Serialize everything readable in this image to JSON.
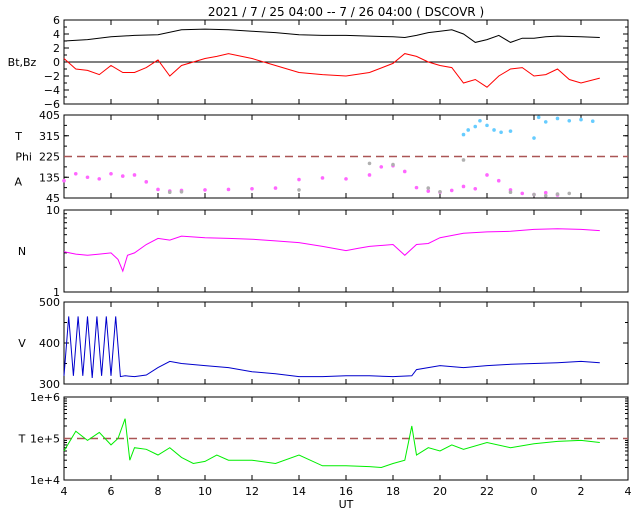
{
  "chart_title": "2021 /  7 / 25   04:00  --  7 / 26   04:00 ( DSCOVR )",
  "x_axis_label": "UT",
  "x_tick_labels": [
    "4",
    "6",
    "8",
    "10",
    "12",
    "14",
    "16",
    "18",
    "20",
    "22",
    "0",
    "2",
    "4"
  ],
  "colors": {
    "bt": "#000000",
    "bz": "#ff0000",
    "phi": "#66ccff",
    "theta": "#ff66ff",
    "theta_alt": "#b0b0b0",
    "density": "#ff00ff",
    "velocity": "#0000cc",
    "temperature": "#00ee00",
    "reference": "#aa5555"
  },
  "chart_data": [
    {
      "type": "line",
      "ylabel": "Bt,Bz",
      "ylim": [
        -6,
        6
      ],
      "y_tick_labels": [
        "6",
        "4",
        "2",
        "0",
        "−2",
        "−4",
        "−6"
      ],
      "zero_line": 0,
      "series": [
        {
          "key": "bt",
          "x": [
            4,
            5,
            6,
            7,
            8,
            9,
            10,
            11,
            12,
            13,
            14,
            15,
            16,
            17,
            18,
            18.5,
            19,
            19.5,
            20,
            20.5,
            21,
            21.5,
            22,
            22.5,
            23,
            23.5,
            24,
            24.5,
            25,
            26,
            26.8
          ],
          "values": [
            3.0,
            3.2,
            3.6,
            3.8,
            3.9,
            4.6,
            4.7,
            4.6,
            4.4,
            4.2,
            3.9,
            3.8,
            3.8,
            3.7,
            3.6,
            3.5,
            3.8,
            4.2,
            4.4,
            4.6,
            4.0,
            2.8,
            3.2,
            3.8,
            2.8,
            3.4,
            3.4,
            3.6,
            3.7,
            3.6,
            3.5
          ]
        },
        {
          "key": "bz",
          "x": [
            4,
            4.5,
            5,
            5.5,
            6,
            6.5,
            7,
            7.5,
            8,
            8.5,
            9,
            9.5,
            10,
            10.5,
            11,
            12,
            13,
            14,
            15,
            16,
            17,
            18,
            18.5,
            19,
            19.5,
            20,
            20.5,
            21,
            21.5,
            22,
            22.5,
            23,
            23.5,
            24,
            24.5,
            25,
            25.5,
            26,
            26.8
          ],
          "values": [
            0.5,
            -1.0,
            -1.2,
            -1.8,
            -0.5,
            -1.5,
            -1.5,
            -0.8,
            0.3,
            -2.0,
            -0.5,
            0.0,
            0.5,
            0.8,
            1.2,
            0.5,
            -0.5,
            -1.5,
            -1.8,
            -2.0,
            -1.5,
            -0.2,
            1.2,
            0.8,
            0.0,
            -0.5,
            -0.8,
            -3.0,
            -2.5,
            -3.6,
            -2.0,
            -1.0,
            -0.8,
            -2.0,
            -1.8,
            -1.0,
            -2.5,
            -3.0,
            -2.3
          ]
        }
      ]
    },
    {
      "type": "scatter",
      "ylabel_top": "T",
      "ylabel_mid": "Phi",
      "ylabel_bottom": "A",
      "ylim": [
        45,
        405
      ],
      "y_tick_labels": [
        "405",
        "315",
        "225",
        "135",
        "45"
      ],
      "reference_line": 225,
      "series": [
        {
          "key": "phi",
          "x": [
            21,
            21.2,
            21.5,
            21.7,
            22,
            22.3,
            22.6,
            23,
            24,
            24.2,
            24.5,
            25,
            25.5,
            26,
            26.5
          ],
          "values": [
            320,
            340,
            355,
            380,
            360,
            340,
            330,
            335,
            305,
            395,
            375,
            390,
            380,
            385,
            378
          ]
        },
        {
          "key": "theta",
          "x": [
            4,
            4.5,
            5,
            5.5,
            6,
            6.5,
            7,
            7.5,
            8,
            8.5,
            9,
            10,
            11,
            12,
            13,
            14,
            15,
            16,
            17,
            17.5,
            18,
            18.5,
            19,
            19.5,
            20,
            20.5,
            21,
            21.5,
            22,
            22.5,
            23,
            23.5,
            24,
            24.5,
            25
          ],
          "values": [
            120,
            150,
            135,
            128,
            150,
            140,
            145,
            115,
            82,
            75,
            78,
            80,
            82,
            85,
            88,
            125,
            132,
            128,
            145,
            180,
            185,
            160,
            90,
            75,
            70,
            78,
            95,
            85,
            145,
            120,
            80,
            65,
            60,
            68,
            58
          ]
        },
        {
          "key": "theta_alt",
          "x": [
            8.5,
            9,
            14,
            17,
            18,
            19.5,
            20,
            21,
            23,
            24,
            24.5,
            25,
            25.5
          ],
          "values": [
            70,
            72,
            80,
            195,
            190,
            88,
            72,
            210,
            70,
            60,
            55,
            62,
            65
          ]
        }
      ]
    },
    {
      "type": "line",
      "ylabel": "N",
      "y_scale": "log",
      "ylim": [
        1,
        10
      ],
      "y_tick_labels": [
        "10",
        "1"
      ],
      "series": [
        {
          "key": "density",
          "x": [
            4,
            4.5,
            5,
            5.5,
            6,
            6.3,
            6.5,
            6.7,
            7,
            7.5,
            8,
            8.5,
            9,
            10,
            11,
            12,
            13,
            14,
            15,
            16,
            16.5,
            17,
            18,
            18.5,
            19,
            19.5,
            20,
            21,
            22,
            23,
            24,
            25,
            26,
            26.8
          ],
          "values": [
            3.1,
            2.9,
            2.8,
            2.9,
            3.0,
            2.5,
            1.8,
            2.8,
            3.0,
            3.8,
            4.5,
            4.3,
            4.8,
            4.6,
            4.5,
            4.4,
            4.2,
            4.0,
            3.6,
            3.2,
            3.4,
            3.6,
            3.8,
            2.8,
            3.8,
            3.9,
            4.6,
            5.2,
            5.4,
            5.5,
            5.8,
            5.9,
            5.8,
            5.6
          ]
        }
      ]
    },
    {
      "type": "line",
      "ylabel": "V",
      "ylim": [
        300,
        500
      ],
      "y_tick_labels": [
        "500",
        "400",
        "300"
      ],
      "series": [
        {
          "key": "velocity",
          "x": [
            4,
            4.2,
            4.4,
            4.6,
            4.8,
            5.0,
            5.2,
            5.4,
            5.6,
            5.8,
            6.0,
            6.2,
            6.4,
            6.6,
            7,
            7.5,
            8,
            8.5,
            9,
            10,
            11,
            12,
            13,
            14,
            15,
            16,
            17,
            18,
            18.8,
            19,
            20,
            21,
            22,
            23,
            24,
            25,
            26,
            26.8
          ],
          "values": [
            320,
            465,
            320,
            465,
            320,
            465,
            315,
            465,
            320,
            465,
            320,
            465,
            318,
            320,
            318,
            322,
            340,
            355,
            350,
            345,
            340,
            330,
            325,
            318,
            318,
            320,
            320,
            318,
            320,
            335,
            345,
            340,
            345,
            348,
            350,
            352,
            355,
            352
          ]
        }
      ]
    },
    {
      "type": "line",
      "ylabel": "T",
      "y_scale": "log",
      "ylim": [
        10000,
        1000000
      ],
      "y_tick_labels": [
        "1e+6",
        "1e+5",
        "1e+4"
      ],
      "reference_line": 100000,
      "series": [
        {
          "key": "temperature",
          "x": [
            4,
            4.5,
            5,
            5.5,
            6,
            6.3,
            6.6,
            6.8,
            7,
            7.5,
            8,
            8.5,
            9,
            9.5,
            10,
            10.5,
            11,
            12,
            13,
            14,
            15,
            16,
            17,
            17.5,
            18,
            18.5,
            18.8,
            19,
            19.5,
            20,
            20.5,
            21,
            22,
            23,
            24,
            25,
            26,
            26.8
          ],
          "values": [
            50000,
            150000,
            90000,
            140000,
            70000,
            100000,
            300000,
            30000,
            60000,
            55000,
            40000,
            60000,
            35000,
            25000,
            28000,
            40000,
            30000,
            30000,
            25000,
            40000,
            22000,
            22000,
            21000,
            20000,
            25000,
            30000,
            200000,
            40000,
            60000,
            50000,
            70000,
            55000,
            80000,
            60000,
            75000,
            85000,
            90000,
            80000
          ]
        }
      ]
    }
  ]
}
